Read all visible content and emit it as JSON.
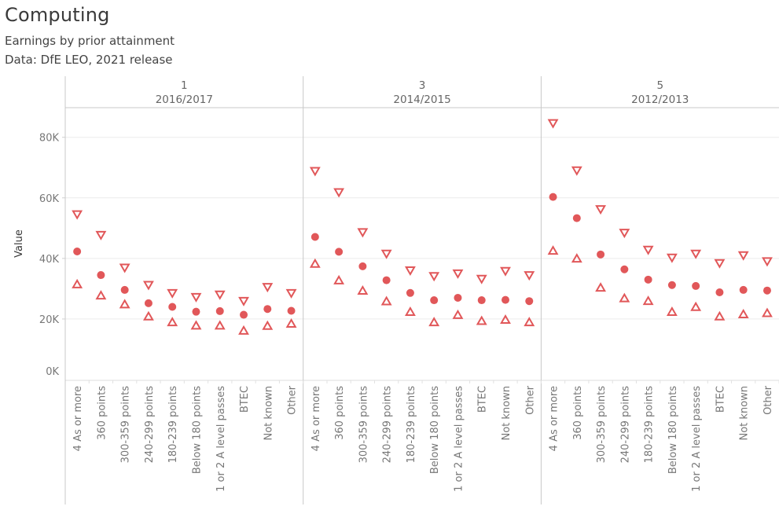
{
  "title": "Computing",
  "subtitle": "Earnings by prior attainment",
  "source": "Data: DfE LEO, 2021 release",
  "marker_color": "#e15759",
  "chart_data": {
    "type": "scatter",
    "title": "Computing",
    "subtitle": "Earnings by prior attainment",
    "note": "Data: DfE LEO, 2021 release",
    "xlabel": "",
    "ylabel": "Value",
    "ylim": [
      0,
      90000
    ],
    "yticks": [
      0,
      20000,
      40000,
      60000,
      80000
    ],
    "ytick_labels": [
      "0K",
      "20K",
      "40K",
      "60K",
      "80K"
    ],
    "grid": true,
    "categories": [
      "4 As or more",
      "360 points",
      "300-359 points",
      "240-299 points",
      "180-239 points",
      "Below 180 points",
      "1 or 2 A level passes",
      "BTEC",
      "Not known",
      "Other"
    ],
    "series_markers": {
      "upper_quartile": "triangle-down",
      "median": "circle",
      "lower_quartile": "triangle-up"
    },
    "panels": [
      {
        "header_top": "1",
        "header_bottom": "2016/2017",
        "series": [
          {
            "name": "upper_quartile",
            "values": [
              54500,
              47700,
              36900,
              31200,
              28500,
              27200,
              28000,
              25900,
              30500,
              28500
            ]
          },
          {
            "name": "median",
            "values": [
              42300,
              34500,
              29600,
              25200,
              24000,
              22400,
              22600,
              21400,
              23300,
              22700
            ]
          },
          {
            "name": "lower_quartile",
            "values": [
              31500,
              27800,
              24900,
              20900,
              19000,
              17900,
              17900,
              16200,
              17800,
              18500
            ]
          }
        ]
      },
      {
        "header_top": "3",
        "header_bottom": "2014/2015",
        "series": [
          {
            "name": "upper_quartile",
            "values": [
              68800,
              61800,
              48600,
              41500,
              36000,
              34100,
              35000,
              33200,
              35800,
              34400
            ]
          },
          {
            "name": "median",
            "values": [
              47100,
              42200,
              37400,
              32800,
              28600,
              26200,
              27000,
              26200,
              26300,
              25900
            ]
          },
          {
            "name": "lower_quartile",
            "values": [
              38300,
              32800,
              29400,
              25900,
              22400,
              19000,
              21400,
              19400,
              19800,
              19000
            ]
          }
        ]
      },
      {
        "header_top": "5",
        "header_bottom": "2012/2013",
        "series": [
          {
            "name": "upper_quartile",
            "values": [
              84600,
              69000,
              56200,
              48400,
              42800,
              40200,
              41500,
              38400,
              41000,
              39000
            ]
          },
          {
            "name": "median",
            "values": [
              60300,
              53300,
              41300,
              36400,
              33000,
              31200,
              30900,
              28800,
              29600,
              29400
            ]
          },
          {
            "name": "lower_quartile",
            "values": [
              42600,
              40000,
              30400,
              26900,
              26000,
              22400,
              24000,
              20900,
              21600,
              22000
            ]
          }
        ]
      }
    ]
  }
}
